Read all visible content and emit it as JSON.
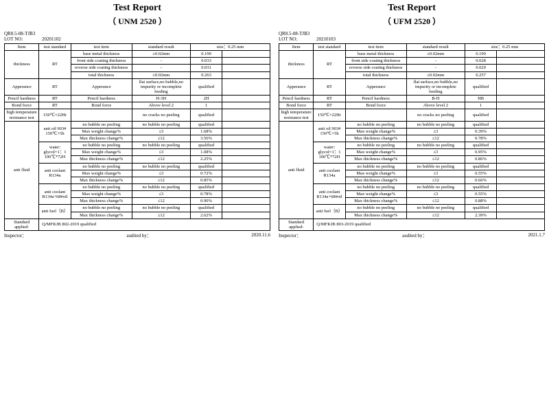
{
  "reports": [
    {
      "title": "Test Report",
      "subtitle": "（ UNM 2520 ）",
      "doc_id": "QR8.5-08-TJB3",
      "lot_label": "LOT NO:",
      "lot_no": "20201102",
      "headers": {
        "item": "Item",
        "std": "test standard",
        "test_item": "test item",
        "std_result": "standard result",
        "size": "size：0.25 mm"
      },
      "groups": [
        {
          "item": "thickness",
          "std": "RT",
          "rows": [
            {
              "ti": "base metal thickness",
              "sr": "±0.02mm",
              "v1": "0.199",
              "v2": ""
            },
            {
              "ti": "front side coating thickness",
              "sr": "-",
              "v1": "0.033",
              "v2": ""
            },
            {
              "ti": "reverse side coating thickness",
              "sr": "-",
              "v1": "0.031",
              "v2": ""
            },
            {
              "ti": "total thickness",
              "sr": "±0.02mm",
              "v1": "0.263",
              "v2": ""
            }
          ]
        },
        {
          "item": "Apperance",
          "std": "RT",
          "rows": [
            {
              "ti": "Apperance",
              "sr": "flat surface,no bubble,no impurity or incomplete feeding",
              "v1": "qualified",
              "v2": ""
            }
          ]
        },
        {
          "item": "Pencil hardness",
          "std": "RT",
          "rows": [
            {
              "ti": "Pencil hardness",
              "sr": "H-3H",
              "v1": "2H",
              "v2": ""
            }
          ]
        },
        {
          "item": "Bond force",
          "std": "RT",
          "rows": [
            {
              "ti": "Bond force",
              "sr": "Above level 2",
              "v1": "1",
              "v2": ""
            }
          ]
        },
        {
          "item": "high temperature resistance test",
          "std": "150℃×22Hr",
          "rows": [
            {
              "ti": "",
              "sr": "no cracks  no peeling",
              "v1": "qualified",
              "v2": ""
            }
          ]
        },
        {
          "item": "anti fluid",
          "subs": [
            {
              "std": "anti oil 903# 150℃×5h",
              "rows": [
                {
                  "ti": "no bubble  no peeling",
                  "sr": "no bubble  no peeling",
                  "v1": "qualified",
                  "v2": ""
                },
                {
                  "ti": "Max weight change%",
                  "sr": "≤3",
                  "v1": "1.68%",
                  "v2": ""
                },
                {
                  "ti": "Max thickness change%",
                  "sr": "≤12",
                  "v1": "3.56%",
                  "v2": ""
                }
              ]
            },
            {
              "std": "water: glycol=1：1 100℃*72H",
              "rows": [
                {
                  "ti": "no bubble  no peeling",
                  "sr": "no bubble  no peeling",
                  "v1": "qualified",
                  "v2": ""
                },
                {
                  "ti": "Max weight change%",
                  "sr": "≤3",
                  "v1": "1.08%",
                  "v2": ""
                },
                {
                  "ti": "Max thickness change%",
                  "sr": "≤12",
                  "v1": "2.25%",
                  "v2": ""
                }
              ]
            },
            {
              "std": "anti coolant R134a",
              "rows": [
                {
                  "ti": "no bubble  no peeling",
                  "sr": "no bubble  no peeling",
                  "v1": "qualified",
                  "v2": ""
                },
                {
                  "ti": "Max weight change%",
                  "sr": "≤3",
                  "v1": "0.72%",
                  "v2": ""
                },
                {
                  "ti": "Max thickness change%",
                  "sr": "≤12",
                  "v1": "0.85%",
                  "v2": ""
                }
              ]
            },
            {
              "std": "anti coolant R134a+68#oil",
              "rows": [
                {
                  "ti": "no bubble  no peeling",
                  "sr": "no bubble  no peeling",
                  "v1": "qualified",
                  "v2": ""
                },
                {
                  "ti": "Max weight change%",
                  "sr": "≤3",
                  "v1": "0.78%",
                  "v2": ""
                },
                {
                  "ti": "Max thickness change%",
                  "sr": "≤12",
                  "v1": "0.90%",
                  "v2": ""
                }
              ]
            },
            {
              "std": "anti fuel（B）",
              "rows": [
                {
                  "ti": "no bubble  no peeling",
                  "sr": "no bubble  no peeling",
                  "v1": "qualified",
                  "v2": ""
                },
                {
                  "ti": "Max thickness change%",
                  "sr": "≤12",
                  "v1": "2.62%",
                  "v2": ""
                }
              ]
            }
          ]
        }
      ],
      "std_applied_label": "Standard applied:",
      "std_applied": "Q/MFKJB 802-2019  qualified",
      "footer": {
        "inspector": "Inspector：",
        "audited": "audited by：",
        "date": "2020.11.6"
      }
    },
    {
      "title": "Test Report",
      "subtitle": "（ UFM 2520 ）",
      "doc_id": "QR8.5-08-TJB3",
      "lot_label": "LOT NO:",
      "lot_no": "20210103",
      "headers": {
        "item": "Item",
        "std": "test standard",
        "test_item": "test item",
        "std_result": "standard result",
        "size": "size：0.25 mm"
      },
      "groups": [
        {
          "item": "thickness",
          "std": "RT",
          "rows": [
            {
              "ti": "base metal thickness",
              "sr": "±0.02mm",
              "v1": "0.199",
              "v2": ""
            },
            {
              "ti": "front side coating thickness",
              "sr": "-",
              "v1": "0.028",
              "v2": ""
            },
            {
              "ti": "reverse side coating thickness",
              "sr": "-",
              "v1": "0.029",
              "v2": ""
            },
            {
              "ti": "total thickness",
              "sr": "±0.02mm",
              "v1": "0.257",
              "v2": ""
            }
          ]
        },
        {
          "item": "Apperance",
          "std": "RT",
          "rows": [
            {
              "ti": "Apperance",
              "sr": "flat surface,no bubble,no impurity or incomplete feeding",
              "v1": "qualified",
              "v2": ""
            }
          ]
        },
        {
          "item": "Pencil hardness",
          "std": "RT",
          "rows": [
            {
              "ti": "Pencil hardness",
              "sr": "B-H",
              "v1": "HB",
              "v2": ""
            }
          ]
        },
        {
          "item": "Bond force",
          "std": "RT",
          "rows": [
            {
              "ti": "Bond force",
              "sr": "Above level 2",
              "v1": "1",
              "v2": ""
            }
          ]
        },
        {
          "item": "high temperature resistance test",
          "std": "150℃×22Hr",
          "rows": [
            {
              "ti": "",
              "sr": "no cracks  no peeling",
              "v1": "qualified",
              "v2": ""
            }
          ]
        },
        {
          "item": "anti fluid",
          "subs": [
            {
              "std": "anti oil 903# 150℃×5h",
              "rows": [
                {
                  "ti": "no bubble  no peeling",
                  "sr": "no bubble  no peeling",
                  "v1": "qualified",
                  "v2": ""
                },
                {
                  "ti": "Max weight change%",
                  "sr": "≤3",
                  "v1": "0.39%",
                  "v2": ""
                },
                {
                  "ti": "Max thickness change%",
                  "sr": "≤12",
                  "v1": "0.78%",
                  "v2": ""
                }
              ]
            },
            {
              "std": "water: glycol=1：1 100℃*72H",
              "rows": [
                {
                  "ti": "no bubble  no peeling",
                  "sr": "no bubble  no peeling",
                  "v1": "qualified",
                  "v2": ""
                },
                {
                  "ti": "Max weight change%",
                  "sr": "≤3",
                  "v1": "0.95%",
                  "v2": ""
                },
                {
                  "ti": "Max thickness change%",
                  "sr": "≤12",
                  "v1": "0.86%",
                  "v2": ""
                }
              ]
            },
            {
              "std": "anti coolant R134a",
              "rows": [
                {
                  "ti": "no bubble  no peeling",
                  "sr": "no bubble  no peeling",
                  "v1": "qualified",
                  "v2": ""
                },
                {
                  "ti": "Max weight change%",
                  "sr": "≤3",
                  "v1": "0.55%",
                  "v2": ""
                },
                {
                  "ti": "Max thickness change%",
                  "sr": "≤12",
                  "v1": "0.66%",
                  "v2": ""
                }
              ]
            },
            {
              "std": "anti coolant R134a+68#oil",
              "rows": [
                {
                  "ti": "no bubble  no peeling",
                  "sr": "no bubble  no peeling",
                  "v1": "qualified",
                  "v2": ""
                },
                {
                  "ti": "Max weight change%",
                  "sr": "≤3",
                  "v1": "0.55%",
                  "v2": ""
                },
                {
                  "ti": "Max thickness change%",
                  "sr": "≤12",
                  "v1": "0.88%",
                  "v2": ""
                }
              ]
            },
            {
              "std": "anti fuel（B）",
              "rows": [
                {
                  "ti": "no bubble  no peeling",
                  "sr": "no bubble  no peeling",
                  "v1": "qualified",
                  "v2": ""
                },
                {
                  "ti": "Max thickness change%",
                  "sr": "≤12",
                  "v1": "2.39%",
                  "v2": ""
                }
              ]
            }
          ]
        }
      ],
      "std_applied_label": "Standard applied:",
      "std_applied": "Q/MFKJB 803-2019  qualified",
      "footer": {
        "inspector": "Inspector：",
        "audited": "audited by：",
        "date": "2021.1.7"
      }
    }
  ]
}
